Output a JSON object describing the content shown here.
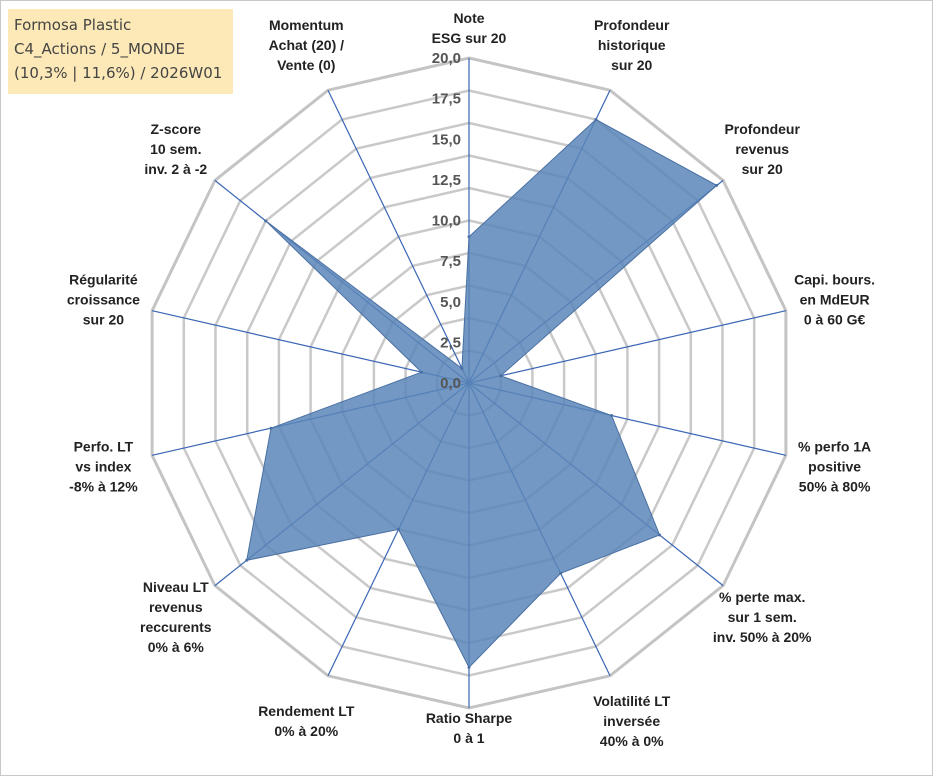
{
  "header": {
    "company": "Formosa Plastic",
    "portfolio": "C4_Actions / 5_MONDE",
    "stats": "(10,3% | 11,6%) / 2026W01"
  },
  "chart_data": {
    "type": "radar",
    "range": [
      0,
      20
    ],
    "ticks": [
      "0,0",
      "2,5",
      "5,0",
      "7,5",
      "10,0",
      "12,5",
      "15,0",
      "17,5",
      "20,0"
    ],
    "grid_levels": 10,
    "axes": [
      {
        "label": [
          "Note",
          "ESG sur 20"
        ],
        "value": 9.0
      },
      {
        "label": [
          "Profondeur",
          "historique",
          "sur 20"
        ],
        "value": 18.0
      },
      {
        "label": [
          "Profondeur",
          "revenus",
          "sur 20"
        ],
        "value": 19.5
      },
      {
        "label": [
          "Capi. bours.",
          "en MdEUR",
          "0 à 60 G€"
        ],
        "value": 2.0
      },
      {
        "label": [
          "% perfo 1A",
          "positive",
          "50% à 80%"
        ],
        "value": 9.0
      },
      {
        "label": [
          "% perte max.",
          "sur 1 sem.",
          "inv. 50% à 20%"
        ],
        "value": 15.0
      },
      {
        "label": [
          "Volatilité LT",
          "inversée",
          "40% à 0%"
        ],
        "value": 13.0
      },
      {
        "label": [
          "Ratio Sharpe",
          "0 à 1"
        ],
        "value": 17.5
      },
      {
        "label": [
          "Rendement LT",
          "0% à 20%"
        ],
        "value": 10.0
      },
      {
        "label": [
          "Niveau LT",
          "revenus",
          "reccurents",
          "0% à 6%"
        ],
        "value": 17.5
      },
      {
        "label": [
          "Perfo. LT",
          "vs index",
          "-8% à 12%"
        ],
        "value": 12.5
      },
      {
        "label": [
          "Régularité",
          "croissance",
          "sur 20"
        ],
        "value": 3.0
      },
      {
        "label": [
          "Z-score",
          "10 sem.",
          "inv. 2 à -2"
        ],
        "value": 16.0
      },
      {
        "label": [
          "Momentum",
          "Achat (20) /",
          "Vente (0)"
        ],
        "value": 1.0
      }
    ],
    "colors": {
      "fill": "#5b86b8",
      "stroke": "#4a70a3",
      "spoke": "#3a66b5",
      "grid": "#c4c4c4",
      "grid_inner": "#c9c9c9"
    }
  }
}
